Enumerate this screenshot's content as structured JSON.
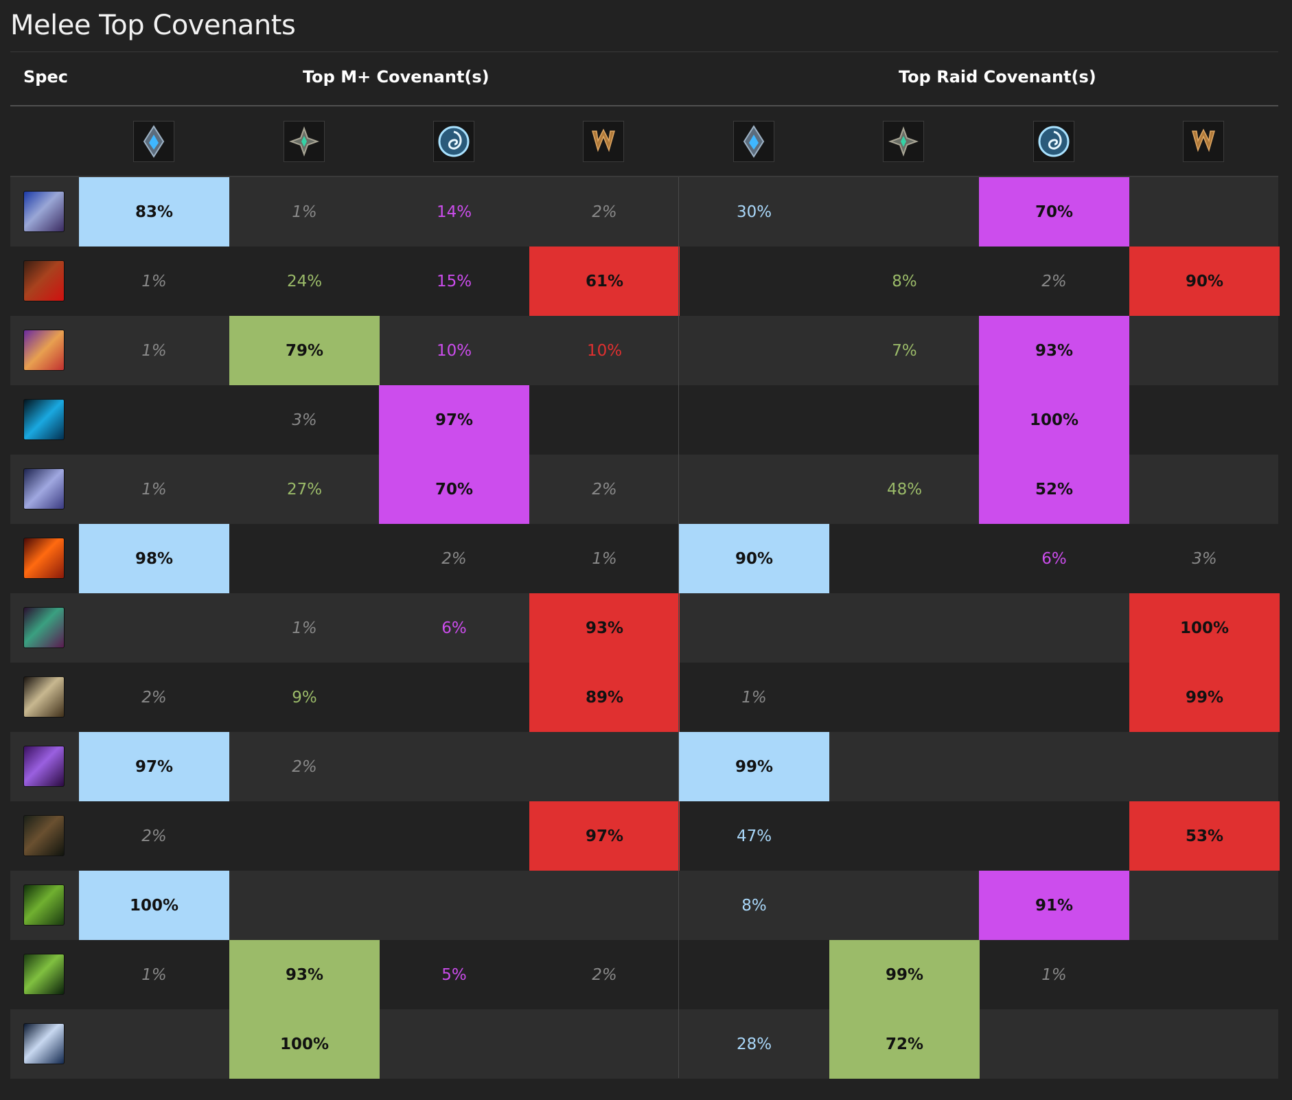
{
  "title": "Melee Top Covenants",
  "header": {
    "spec": "Spec",
    "mplus": "Top M+ Covenant(s)",
    "raid": "Top Raid Covenant(s)"
  },
  "covenants": [
    {
      "icon": "kyrian-icon",
      "color": "#aad8fa"
    },
    {
      "icon": "night-fae-icon",
      "color": "#9bbb69"
    },
    {
      "icon": "necrolord-icon",
      "color": "#cc4ded"
    },
    {
      "icon": "venthyr-icon",
      "color": "#e03030"
    }
  ],
  "colors": {
    "kyrian": "#aad8fa",
    "nightfae": "#9bbb69",
    "necrolord": "#cc4ded",
    "venthyr": "#e03030"
  },
  "rows": [
    {
      "spec": "spec-arms-warrior-icon",
      "mplus": [
        "83%",
        "1%",
        "14%",
        "2%"
      ],
      "raid": [
        "30%",
        "",
        "70%",
        ""
      ]
    },
    {
      "spec": "spec-fury-warrior-icon",
      "mplus": [
        "1%",
        "24%",
        "15%",
        "61%"
      ],
      "raid": [
        "",
        "8%",
        "2%",
        "90%"
      ]
    },
    {
      "spec": "spec-retribution-paladin-icon",
      "mplus": [
        "1%",
        "79%",
        "10%",
        "10%"
      ],
      "raid": [
        "",
        "7%",
        "93%",
        ""
      ]
    },
    {
      "spec": "spec-enhancement-shaman-icon",
      "mplus": [
        "",
        "3%",
        "97%",
        ""
      ],
      "raid": [
        "",
        "",
        "100%",
        ""
      ]
    },
    {
      "spec": "spec-frost-death-knight-icon",
      "mplus": [
        "1%",
        "27%",
        "70%",
        "2%"
      ],
      "raid": [
        "",
        "48%",
        "52%",
        ""
      ]
    },
    {
      "spec": "spec-unholy-death-knight-icon",
      "mplus": [
        "98%",
        "",
        "2%",
        "1%"
      ],
      "raid": [
        "90%",
        "",
        "6%",
        "3%"
      ]
    },
    {
      "spec": "spec-havoc-demon-hunter-icon",
      "mplus": [
        "",
        "1%",
        "6%",
        "93%"
      ],
      "raid": [
        "",
        "",
        "",
        "100%"
      ]
    },
    {
      "spec": "spec-outlaw-rogue-icon",
      "mplus": [
        "2%",
        "9%",
        "",
        "89%"
      ],
      "raid": [
        "1%",
        "",
        "",
        "99%"
      ]
    },
    {
      "spec": "spec-assassination-rogue-icon",
      "mplus": [
        "97%",
        "2%",
        "",
        ""
      ],
      "raid": [
        "99%",
        "",
        "",
        ""
      ]
    },
    {
      "spec": "spec-subtlety-rogue-icon",
      "mplus": [
        "2%",
        "",
        "",
        "97%"
      ],
      "raid": [
        "47%",
        "",
        "",
        "53%"
      ]
    },
    {
      "spec": "spec-survival-hunter-icon",
      "mplus": [
        "100%",
        "",
        "",
        ""
      ],
      "raid": [
        "8%",
        "",
        "91%",
        ""
      ]
    },
    {
      "spec": "spec-feral-druid-icon",
      "mplus": [
        "1%",
        "93%",
        "5%",
        "2%"
      ],
      "raid": [
        "",
        "99%",
        "1%",
        ""
      ]
    },
    {
      "spec": "spec-windwalker-monk-icon",
      "mplus": [
        "",
        "100%",
        "",
        ""
      ],
      "raid": [
        "28%",
        "72%",
        "",
        ""
      ]
    }
  ]
}
